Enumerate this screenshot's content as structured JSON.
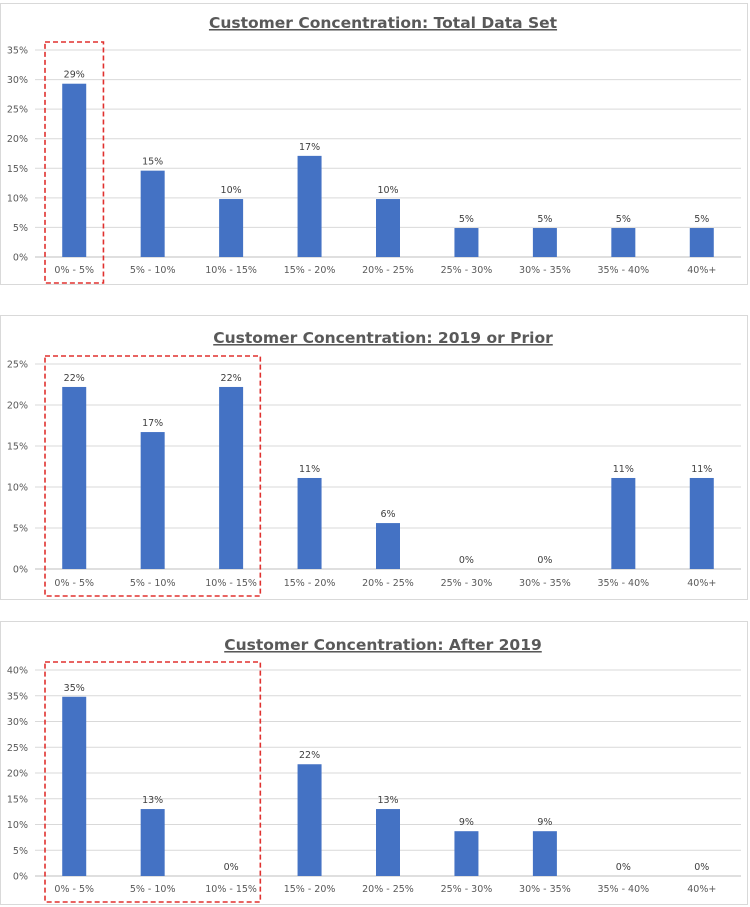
{
  "chart_data": [
    {
      "type": "bar",
      "title": "Customer Concentration: Total Data Set",
      "categories": [
        "0% - 5%",
        "5% - 10%",
        "10% - 15%",
        "15% - 20%",
        "20% - 25%",
        "25% - 30%",
        "30% - 35%",
        "35% - 40%",
        "40%+"
      ],
      "values": [
        0.293,
        0.146,
        0.098,
        0.171,
        0.098,
        0.049,
        0.049,
        0.049,
        0.049
      ],
      "data_labels": [
        "29%",
        "15%",
        "10%",
        "17%",
        "10%",
        "5%",
        "5%",
        "5%",
        "5%"
      ],
      "yticks": [
        "0%",
        "5%",
        "10%",
        "15%",
        "20%",
        "25%",
        "30%",
        "35%"
      ],
      "ylim": [
        0,
        0.35
      ],
      "grid": true,
      "highlight": {
        "from": 0,
        "to": 0,
        "color": "#e0312f"
      },
      "bar_color": "#4472c4"
    },
    {
      "type": "bar",
      "title": "Customer Concentration: 2019 or Prior",
      "categories": [
        "0% - 5%",
        "5% - 10%",
        "10% - 15%",
        "15% - 20%",
        "20% - 25%",
        "25% - 30%",
        "30% - 35%",
        "35% - 40%",
        "40%+"
      ],
      "values": [
        0.222,
        0.167,
        0.222,
        0.111,
        0.056,
        0,
        0,
        0.111,
        0.111
      ],
      "data_labels": [
        "22%",
        "17%",
        "22%",
        "11%",
        "6%",
        "0%",
        "0%",
        "11%",
        "11%"
      ],
      "yticks": [
        "0%",
        "5%",
        "10%",
        "15%",
        "20%",
        "25%"
      ],
      "ylim": [
        0,
        0.25
      ],
      "grid": true,
      "highlight": {
        "from": 0,
        "to": 2,
        "color": "#e0312f"
      },
      "bar_color": "#4472c4"
    },
    {
      "type": "bar",
      "title": "Customer Concentration: After 2019",
      "categories": [
        "0% - 5%",
        "5% - 10%",
        "10% - 15%",
        "15% - 20%",
        "20% - 25%",
        "25% - 30%",
        "30% - 35%",
        "35% - 40%",
        "40%+"
      ],
      "values": [
        0.348,
        0.13,
        0,
        0.217,
        0.13,
        0.087,
        0.087,
        0,
        0
      ],
      "data_labels": [
        "35%",
        "13%",
        "0%",
        "22%",
        "13%",
        "9%",
        "9%",
        "0%",
        "0%"
      ],
      "yticks": [
        "0%",
        "5%",
        "10%",
        "15%",
        "20%",
        "25%",
        "30%",
        "35%",
        "40%"
      ],
      "ylim": [
        0,
        0.4
      ],
      "grid": true,
      "highlight": {
        "from": 0,
        "to": 2,
        "color": "#e0312f"
      },
      "bar_color": "#4472c4"
    }
  ]
}
